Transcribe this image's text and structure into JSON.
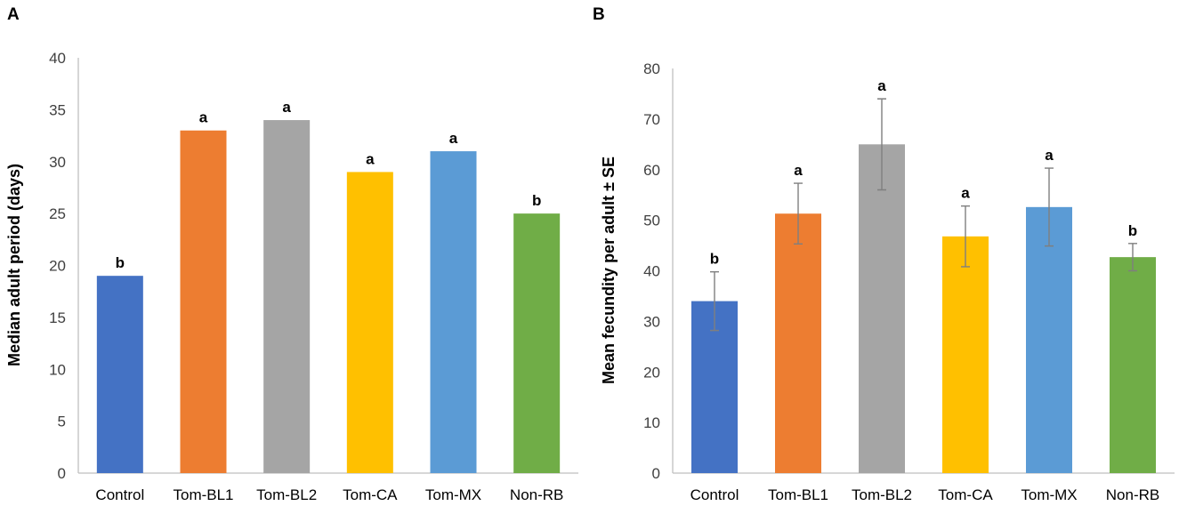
{
  "chart_data": [
    {
      "type": "bar",
      "panel": "A",
      "ylabel": "Median adult period (days)",
      "xlabel": "",
      "ylim": [
        0,
        40
      ],
      "yticks": [
        0,
        5,
        10,
        15,
        20,
        25,
        30,
        35,
        40
      ],
      "categories": [
        "Control",
        "Tom-BL1",
        "Tom-BL2",
        "Tom-CA",
        "Tom-MX",
        "Non-RB"
      ],
      "values": [
        19,
        33,
        34,
        29,
        31,
        25
      ],
      "letters": [
        "b",
        "a",
        "a",
        "a",
        "a",
        "b"
      ],
      "colors": [
        "#4472c4",
        "#ed7d31",
        "#a5a5a5",
        "#ffc000",
        "#5b9bd5",
        "#70ad47"
      ],
      "grid": false,
      "legend": "none"
    },
    {
      "type": "bar",
      "panel": "B",
      "ylabel": "Mean fecundity per adult ± SE",
      "xlabel": "",
      "ylim": [
        0,
        80
      ],
      "yticks": [
        0,
        10,
        20,
        30,
        40,
        50,
        60,
        70,
        80
      ],
      "categories": [
        "Control",
        "Tom-BL1",
        "Tom-BL2",
        "Tom-CA",
        "Tom-MX",
        "Non-RB"
      ],
      "values": [
        34,
        51.3,
        65,
        46.8,
        52.6,
        42.7
      ],
      "errors": [
        5.8,
        6.0,
        9.0,
        6.0,
        7.7,
        2.7
      ],
      "letters": [
        "b",
        "a",
        "a",
        "a",
        "a",
        "b"
      ],
      "colors": [
        "#4472c4",
        "#ed7d31",
        "#a5a5a5",
        "#ffc000",
        "#5b9bd5",
        "#70ad47"
      ],
      "grid": false,
      "legend": "none"
    }
  ]
}
